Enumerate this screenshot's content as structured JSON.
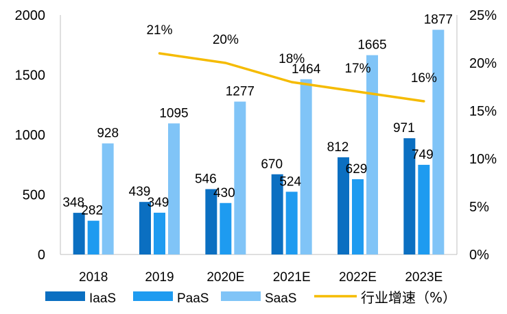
{
  "chart_data": {
    "type": "bar",
    "categories": [
      "2018",
      "2019",
      "2020E",
      "2021E",
      "2022E",
      "2023E"
    ],
    "series": [
      {
        "name": "IaaS",
        "values": [
          348,
          439,
          546,
          670,
          812,
          971
        ],
        "color": "#0B6FC1"
      },
      {
        "name": "PaaS",
        "values": [
          282,
          349,
          430,
          524,
          629,
          749
        ],
        "color": "#1E9BF0"
      },
      {
        "name": "SaaS",
        "values": [
          928,
          1095,
          1277,
          1464,
          1665,
          1877
        ],
        "color": "#80C4F7"
      }
    ],
    "line_series": {
      "name": "行业增速（%）",
      "values": [
        null,
        21,
        20,
        18,
        17,
        16
      ],
      "labels": [
        "",
        "21%",
        "20%",
        "18%",
        "17%",
        "16%"
      ],
      "color": "#F5BB00",
      "axis": "right"
    },
    "ylim": [
      0,
      2000
    ],
    "yticks": [
      "0",
      "500",
      "1000",
      "1500",
      "2000"
    ],
    "y2lim": [
      0,
      25
    ],
    "y2ticks": [
      "0%",
      "5%",
      "10%",
      "15%",
      "20%",
      "25%"
    ],
    "legend_position": "bottom",
    "grid": false
  }
}
